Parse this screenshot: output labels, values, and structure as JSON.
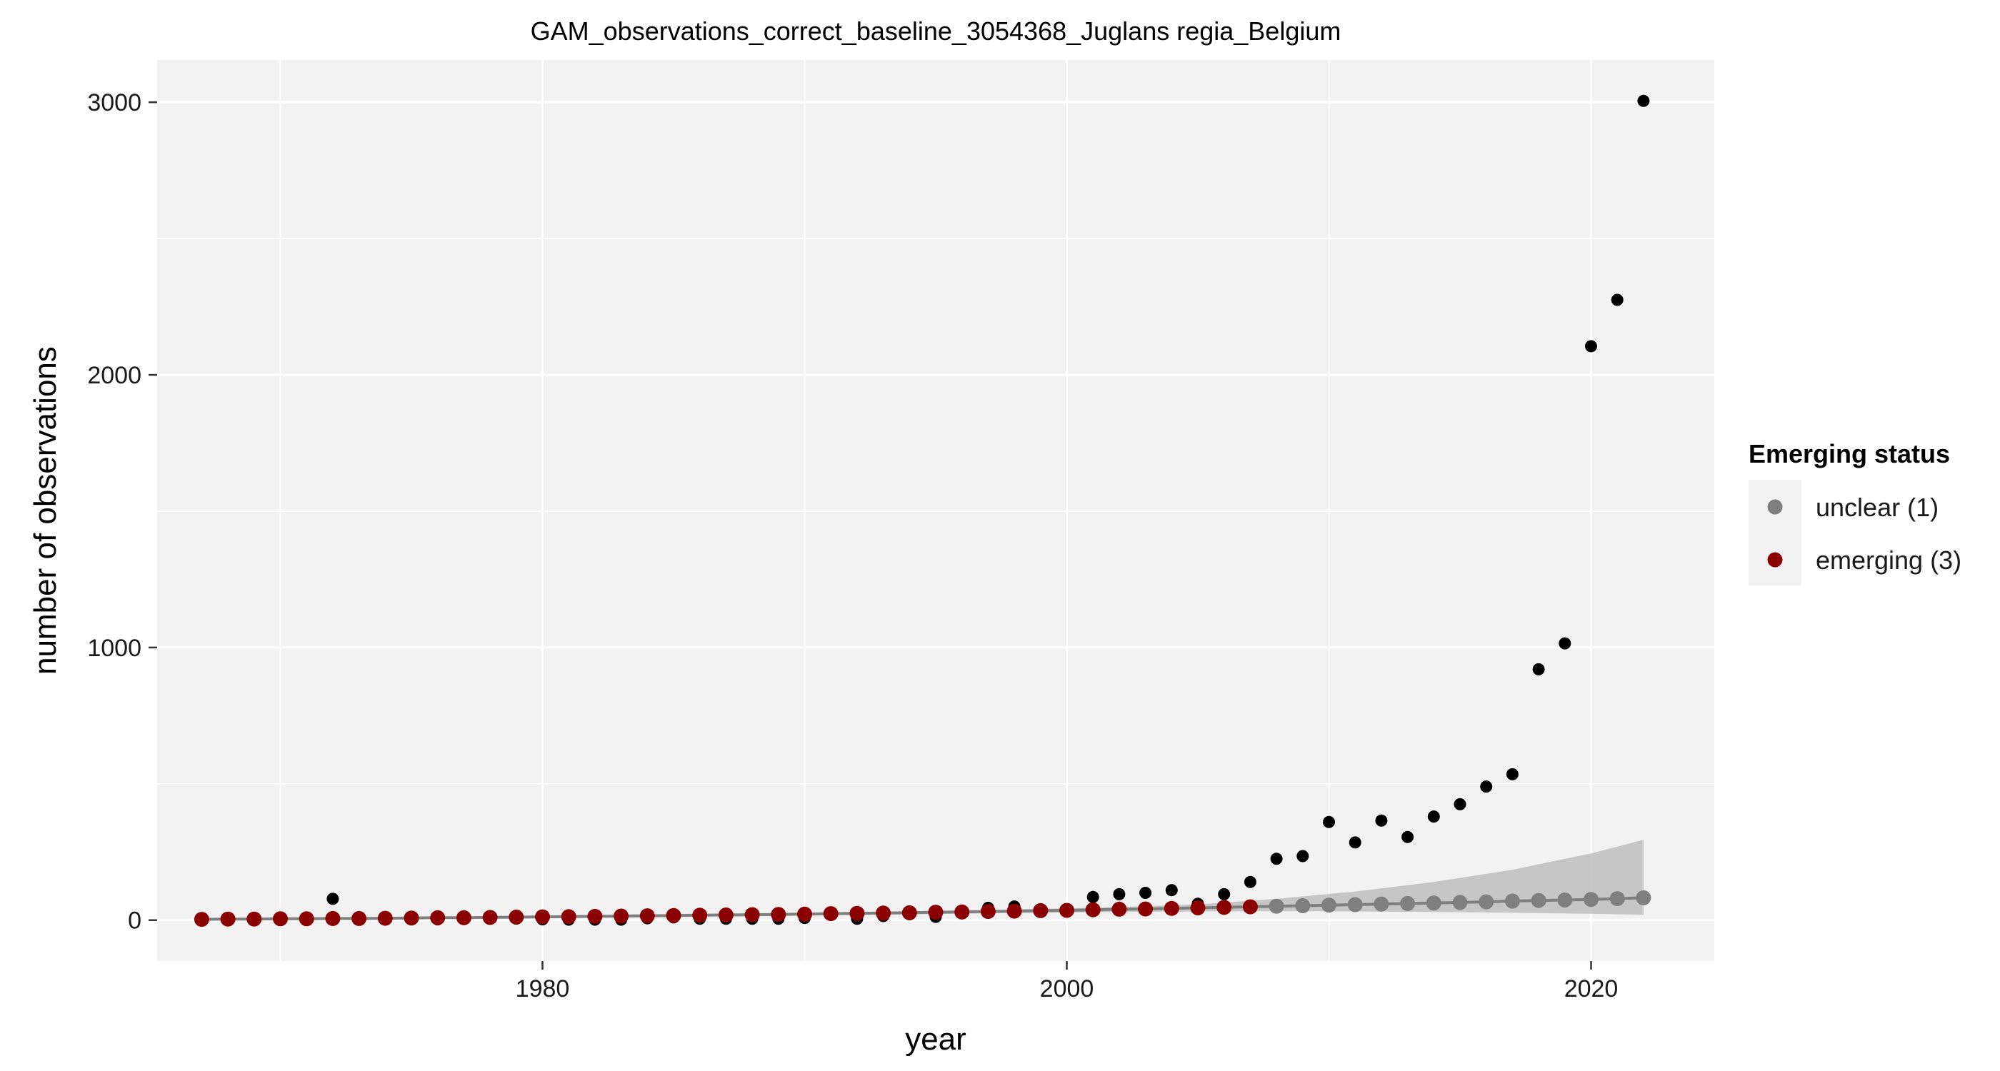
{
  "chart_data": {
    "type": "scatter",
    "title": "GAM_observations_correct_baseline_3054368_Juglans regia_Belgium",
    "xlabel": "year",
    "ylabel": "number of observations",
    "xlim": [
      1965.3,
      2024.7
    ],
    "ylim": [
      -150,
      3155
    ],
    "x_ticks": [
      1980,
      2000,
      2020
    ],
    "x_tick_labels": [
      "1980",
      "2000",
      "2020"
    ],
    "x_minor_ticks": [
      1970,
      1990,
      2010
    ],
    "y_ticks": [
      0,
      1000,
      2000,
      3000
    ],
    "y_tick_labels": [
      "0",
      "1000",
      "2000",
      "3000"
    ],
    "y_minor_ticks": [
      500,
      1500,
      2500
    ],
    "grid": true,
    "legend": {
      "title": "Emerging status",
      "position": "right",
      "entries": [
        {
          "label": "unclear (1)",
          "color": "#7f7f7f"
        },
        {
          "label": "emerging (3)",
          "color": "#8b0000"
        }
      ]
    },
    "colors": {
      "panel": "#f2f2f2",
      "grid": "#ffffff",
      "observed": "#000000",
      "unclear": "#7f7f7f",
      "emerging": "#8b0000",
      "ribbon": "#bebebe",
      "fit_line": "#7f7f7f"
    },
    "series": [
      {
        "role": "observed",
        "x": [
          1967,
          1968,
          1969,
          1970,
          1971,
          1972,
          1973,
          1974,
          1975,
          1976,
          1977,
          1978,
          1979,
          1980,
          1981,
          1982,
          1983,
          1984,
          1985,
          1986,
          1987,
          1988,
          1989,
          1990,
          1991,
          1992,
          1993,
          1994,
          1995,
          1996,
          1997,
          1998,
          1999,
          2000,
          2001,
          2002,
          2003,
          2004,
          2005,
          2006,
          2007,
          2008,
          2009,
          2010,
          2011,
          2012,
          2013,
          2014,
          2015,
          2016,
          2017,
          2018,
          2019,
          2020,
          2021,
          2022
        ],
        "y": [
          3,
          2,
          4,
          3,
          2,
          78,
          3,
          4,
          4,
          3,
          8,
          6,
          6,
          3,
          2,
          2,
          2,
          7,
          10,
          5,
          5,
          5,
          5,
          8,
          20,
          5,
          15,
          25,
          12,
          25,
          45,
          50,
          40,
          40,
          85,
          95,
          100,
          110,
          60,
          95,
          140,
          225,
          235,
          360,
          285,
          365,
          305,
          380,
          425,
          490,
          535,
          920,
          1015,
          2105,
          2275,
          3005
        ]
      },
      {
        "role": "fitted",
        "x": [
          1967,
          1968,
          1969,
          1970,
          1971,
          1972,
          1973,
          1974,
          1975,
          1976,
          1977,
          1978,
          1979,
          1980,
          1981,
          1982,
          1983,
          1984,
          1985,
          1986,
          1987,
          1988,
          1989,
          1990,
          1991,
          1992,
          1993,
          1994,
          1995,
          1996,
          1997,
          1998,
          1999,
          2000,
          2001,
          2002,
          2003,
          2004,
          2005,
          2006,
          2007,
          2008,
          2009,
          2010,
          2011,
          2012,
          2013,
          2014,
          2015,
          2016,
          2017,
          2018,
          2019,
          2020,
          2021,
          2022
        ],
        "y": [
          3,
          4,
          4,
          5,
          5,
          6,
          6,
          7,
          8,
          9,
          9,
          10,
          11,
          12,
          13,
          14,
          15,
          16,
          17,
          18,
          19,
          20,
          21,
          22,
          24,
          25,
          26,
          27,
          29,
          30,
          32,
          33,
          35,
          36,
          38,
          40,
          41,
          43,
          45,
          47,
          49,
          51,
          53,
          55,
          57,
          59,
          61,
          63,
          65,
          67,
          70,
          72,
          74,
          76,
          79,
          82
        ],
        "status": [
          "emerging",
          "emerging",
          "emerging",
          "emerging",
          "emerging",
          "emerging",
          "emerging",
          "emerging",
          "emerging",
          "emerging",
          "emerging",
          "emerging",
          "emerging",
          "emerging",
          "emerging",
          "emerging",
          "emerging",
          "emerging",
          "emerging",
          "emerging",
          "emerging",
          "emerging",
          "emerging",
          "emerging",
          "emerging",
          "emerging",
          "emerging",
          "emerging",
          "emerging",
          "emerging",
          "emerging",
          "emerging",
          "emerging",
          "emerging",
          "emerging",
          "emerging",
          "emerging",
          "emerging",
          "emerging",
          "emerging",
          "emerging",
          "unclear",
          "unclear",
          "unclear",
          "unclear",
          "unclear",
          "unclear",
          "unclear",
          "unclear",
          "unclear",
          "unclear",
          "unclear",
          "unclear",
          "unclear",
          "unclear",
          "unclear"
        ]
      },
      {
        "role": "confidence-band",
        "x": [
          1967,
          1972,
          1977,
          1982,
          1987,
          1992,
          1997,
          2002,
          2005,
          2008,
          2011,
          2014,
          2017,
          2020,
          2022
        ],
        "lower": [
          0,
          2,
          5,
          9,
          14,
          19,
          25,
          30,
          32,
          33,
          32,
          30,
          27,
          23,
          20
        ],
        "upper": [
          6,
          10,
          14,
          19,
          24,
          30,
          37,
          48,
          58,
          78,
          105,
          140,
          185,
          245,
          295
        ]
      }
    ]
  }
}
